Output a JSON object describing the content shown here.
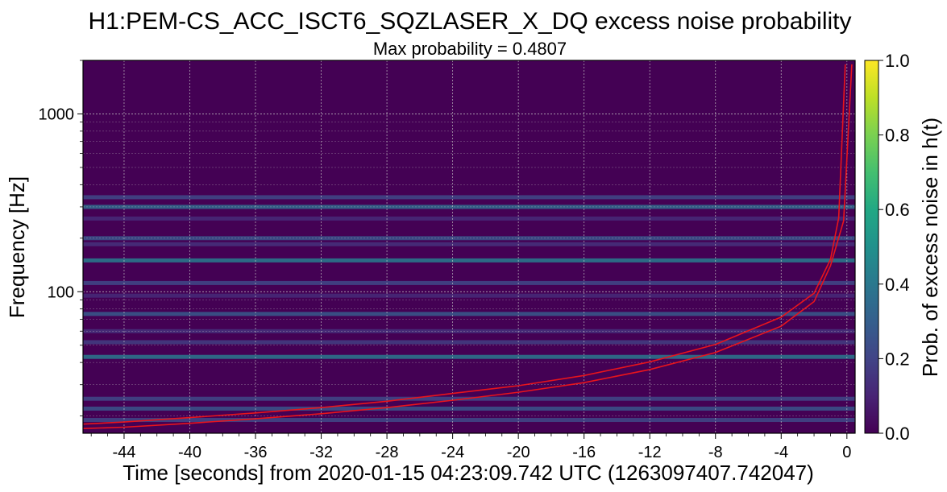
{
  "chart_data": {
    "type": "heatmap",
    "title": "H1:PEM-CS_ACC_ISCT6_SQZLASER_X_DQ excess noise probability",
    "subtitle": "Max probability = 0.4807",
    "xlabel": "Time [seconds] from 2020-01-15 04:23:09.742 UTC (1263097407.742047)",
    "ylabel": "Frequency [Hz]",
    "colorbar_label": "Prob. of excess noise in h(t)",
    "x_scale": "linear",
    "y_scale": "log",
    "xlim": [
      -46.5,
      0.5
    ],
    "ylim": [
      16,
      2000
    ],
    "clim": [
      0.0,
      1.0
    ],
    "colormap": "viridis",
    "grid": true,
    "x_ticks": [
      -44,
      -40,
      -36,
      -32,
      -28,
      -24,
      -20,
      -16,
      -12,
      -8,
      -4,
      0
    ],
    "x_tick_labels": [
      "-44",
      "-40",
      "-36",
      "-32",
      "-28",
      "-24",
      "-20",
      "-16",
      "-12",
      "-8",
      "-4",
      "0"
    ],
    "y_ticks": [
      100,
      1000
    ],
    "y_tick_labels": [
      "100",
      "1000"
    ],
    "colorbar_ticks": [
      0.0,
      0.2,
      0.4,
      0.6,
      0.8,
      1.0
    ],
    "colorbar_tick_labels": [
      "0.0",
      "0.2",
      "0.4",
      "0.6",
      "0.8",
      "1.0"
    ],
    "horizontal_bands_hz": [
      {
        "freq": 340,
        "prob": 0.22
      },
      {
        "freq": 300,
        "prob": 0.35
      },
      {
        "freq": 258,
        "prob": 0.12
      },
      {
        "freq": 200,
        "prob": 0.26
      },
      {
        "freq": 185,
        "prob": 0.14
      },
      {
        "freq": 150,
        "prob": 0.42
      },
      {
        "freq": 112,
        "prob": 0.22
      },
      {
        "freq": 95,
        "prob": 0.12
      },
      {
        "freq": 75,
        "prob": 0.28
      },
      {
        "freq": 60,
        "prob": 0.14
      },
      {
        "freq": 52,
        "prob": 0.18
      },
      {
        "freq": 43,
        "prob": 0.4
      },
      {
        "freq": 25,
        "prob": 0.22
      },
      {
        "freq": 22,
        "prob": 0.26
      },
      {
        "freq": 19,
        "prob": 0.22
      }
    ],
    "chirp_tracks": [
      {
        "color": "#e8141c",
        "x": [
          -46.5,
          -44,
          -40,
          -36,
          -32,
          -28,
          -24,
          -20,
          -16,
          -12,
          -8,
          -4,
          -2,
          -1,
          -0.5,
          -0.1
        ],
        "y": [
          18,
          18.5,
          19.6,
          20.8,
          22.3,
          24.2,
          26.8,
          29.6,
          33.8,
          40.3,
          50.5,
          72,
          98,
          152,
          260,
          1900
        ]
      },
      {
        "color": "#e8141c",
        "x": [
          -46.5,
          -44,
          -40,
          -36,
          -32,
          -28,
          -24,
          -20,
          -16,
          -12,
          -8,
          -4,
          -2,
          -1,
          -0.2,
          0.3
        ],
        "y": [
          17,
          17.3,
          18.2,
          19.3,
          20.6,
          22.3,
          24.5,
          27.2,
          30.8,
          36.5,
          45.5,
          64,
          88,
          140,
          250,
          1900
        ]
      }
    ]
  }
}
